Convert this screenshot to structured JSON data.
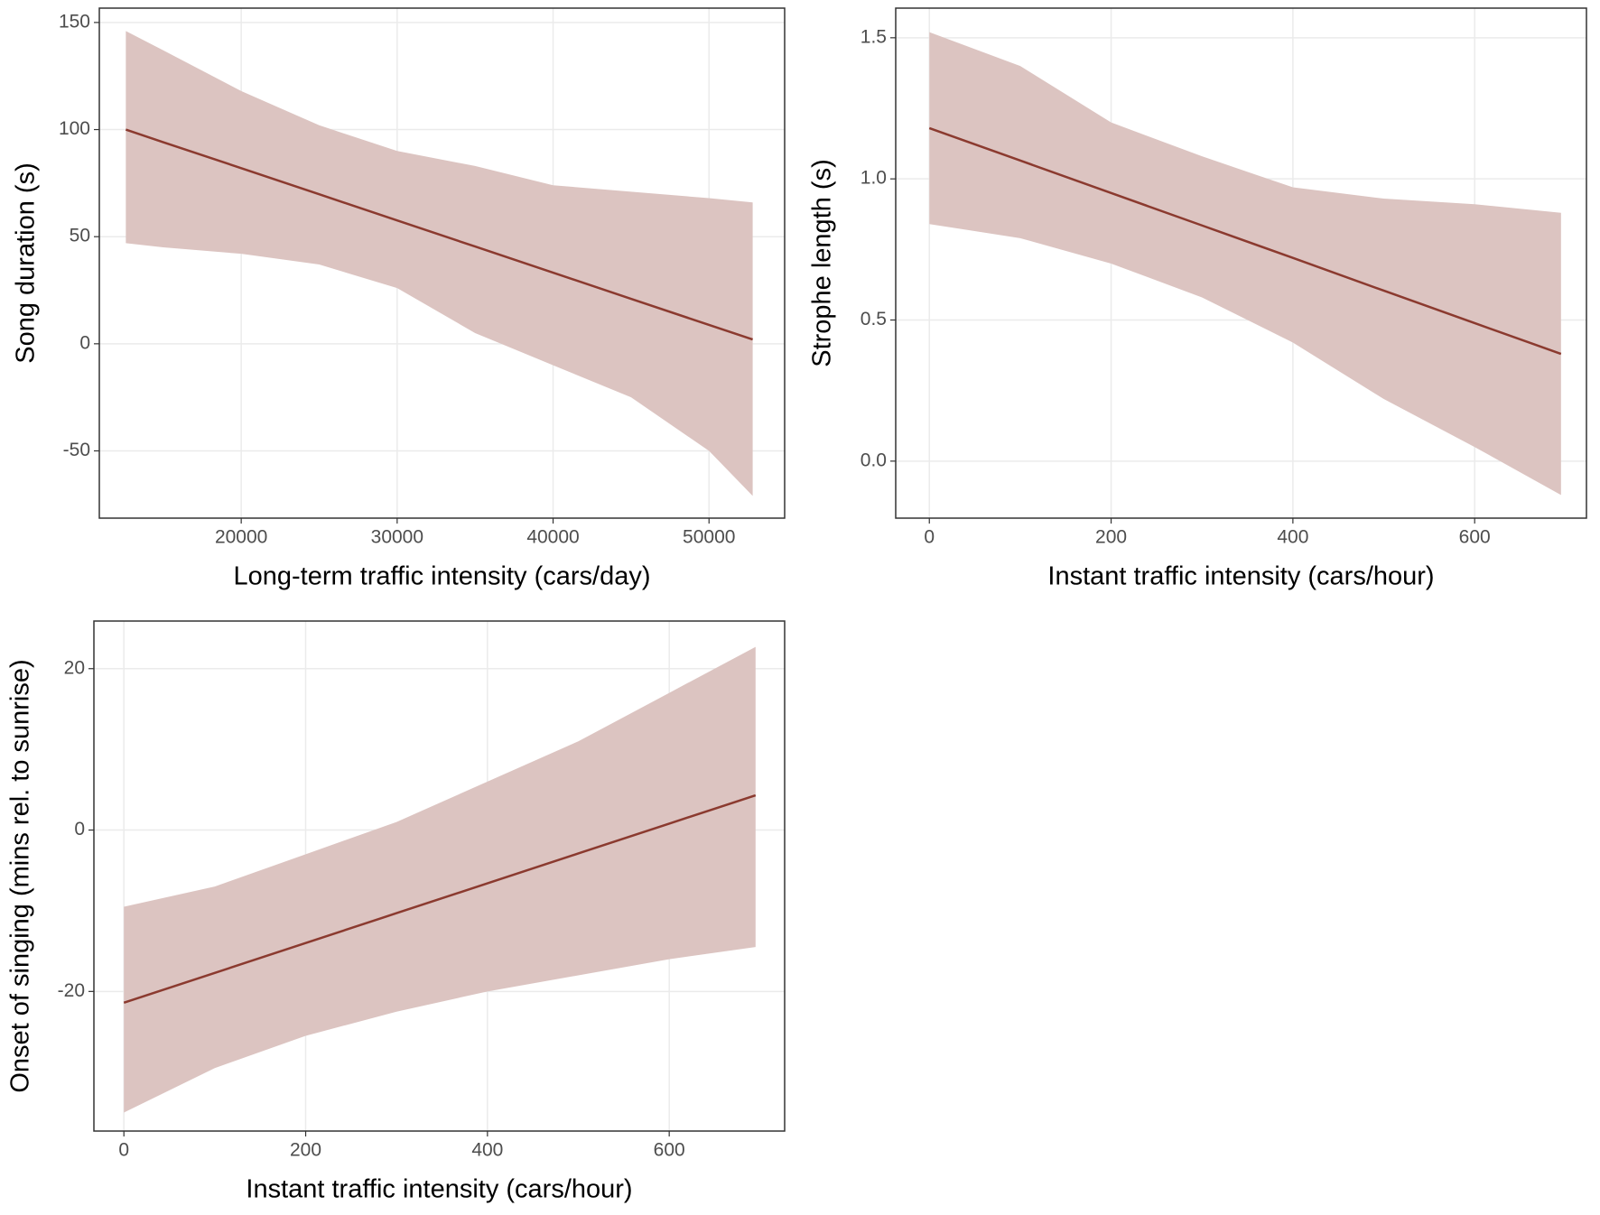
{
  "chart_data": [
    {
      "type": "line",
      "xlabel": "Long-term traffic intensity (cars/day)",
      "ylabel": "Song duration (s)",
      "x": [
        12600,
        15000,
        20000,
        25000,
        30000,
        35000,
        40000,
        45000,
        50000,
        52800
      ],
      "series": [
        {
          "color": "#8b3a2f",
          "band_color": "#dcc4c1",
          "values": [
            100,
            94.1,
            82,
            69.8,
            57.6,
            45.4,
            33.2,
            21,
            8.8,
            2
          ],
          "lower": [
            47,
            45,
            42,
            37,
            26,
            5,
            -10,
            -25,
            -50,
            -71
          ],
          "upper": [
            146,
            137,
            118,
            102,
            90,
            83,
            74,
            71,
            68,
            66
          ]
        }
      ],
      "xlim": [
        10900,
        54850
      ],
      "xticks": [
        20000,
        30000,
        40000,
        50000
      ],
      "ylim": [
        -81.4,
        156.7
      ],
      "yticks": [
        -50,
        0,
        50,
        100,
        150
      ],
      "grid": true
    },
    {
      "type": "line",
      "xlabel": "Instant traffic intensity (cars/hour)",
      "ylabel": "Strophe length (s)",
      "x": [
        0,
        100,
        200,
        300,
        400,
        500,
        600,
        695
      ],
      "series": [
        {
          "color": "#8b3a2f",
          "band_color": "#dcc4c1",
          "values": [
            1.18,
            1.065,
            0.95,
            0.835,
            0.72,
            0.604,
            0.489,
            0.38
          ],
          "lower": [
            0.84,
            0.79,
            0.7,
            0.58,
            0.42,
            0.22,
            0.05,
            -0.12
          ],
          "upper": [
            1.52,
            1.4,
            1.2,
            1.08,
            0.97,
            0.93,
            0.91,
            0.88
          ]
        }
      ],
      "xlim": [
        -37,
        723
      ],
      "xticks": [
        0,
        200,
        400,
        600
      ],
      "ylim": [
        -0.202,
        1.605
      ],
      "yticks": [
        {
          "value": 0,
          "label": "0.0"
        },
        0.5,
        {
          "value": 1,
          "label": "1.0"
        },
        1.5
      ],
      "grid": true
    },
    {
      "type": "line",
      "xlabel": "Instant traffic intensity (cars/hour)",
      "ylabel": "Onset of singing (mins rel. to sunrise)",
      "x": [
        0,
        100,
        200,
        300,
        400,
        500,
        600,
        695
      ],
      "series": [
        {
          "color": "#8b3a2f",
          "band_color": "#dcc4c1",
          "values": [
            -21.4,
            -17.7,
            -14,
            -10.3,
            -6.6,
            -2.9,
            0.8,
            4.3
          ],
          "lower": [
            -35,
            -29.5,
            -25.5,
            -22.5,
            -20,
            -18,
            -16,
            -14.5
          ],
          "upper": [
            -9.5,
            -7,
            -3,
            1,
            6,
            11,
            17,
            22.7
          ]
        }
      ],
      "xlim": [
        -33,
        727
      ],
      "xticks": [
        0,
        200,
        400,
        600
      ],
      "ylim": [
        -37.3,
        25.9
      ],
      "yticks": [
        -20,
        0,
        20
      ],
      "grid": true
    }
  ]
}
